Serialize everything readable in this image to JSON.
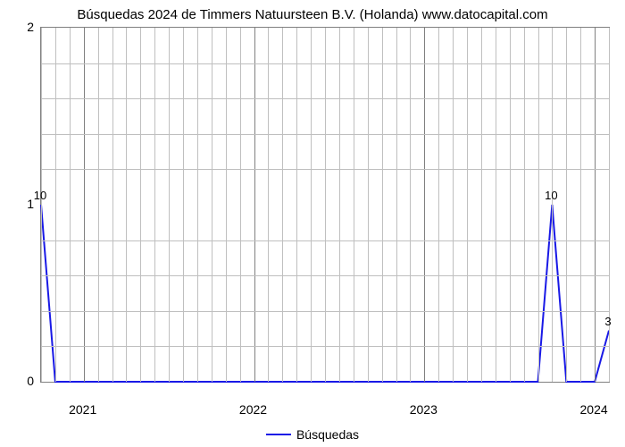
{
  "chart": {
    "type": "line",
    "title": "Búsquedas 2024 de Timmers Natuursteen B.V. (Holanda) www.datocapital.com",
    "title_fontsize": 15,
    "background_color": "#ffffff",
    "plot_border_color": "#808080",
    "line_color": "#1919e6",
    "line_width": 2,
    "grid_major_color": "#808080",
    "grid_minor_color": "#bfbfbf",
    "ylim": [
      0,
      2
    ],
    "ytick_major": [
      0,
      1,
      2
    ],
    "yminor_count_between": 4,
    "xlim": [
      0,
      40
    ],
    "x_major_ticks_pos": [
      3,
      15,
      27,
      39
    ],
    "x_major_labels": [
      "2021",
      "2022",
      "2023",
      "2024"
    ],
    "x_minor_interval": 1,
    "series_x": [
      0,
      1,
      2,
      3,
      4,
      5,
      6,
      7,
      8,
      9,
      10,
      11,
      12,
      13,
      14,
      15,
      16,
      17,
      18,
      19,
      20,
      21,
      22,
      23,
      24,
      25,
      26,
      27,
      28,
      29,
      30,
      31,
      32,
      33,
      34,
      35,
      36,
      37,
      38,
      39,
      40
    ],
    "series_y": [
      1,
      0,
      0,
      0,
      0,
      0,
      0,
      0,
      0,
      0,
      0,
      0,
      0,
      0,
      0,
      0,
      0,
      0,
      0,
      0,
      0,
      0,
      0,
      0,
      0,
      0,
      0,
      0,
      0,
      0,
      0,
      0,
      0,
      0,
      0,
      0,
      1,
      0,
      0,
      0,
      0.29
    ],
    "data_labels": [
      {
        "x": 0,
        "y": 1,
        "text": "10"
      },
      {
        "x": 36,
        "y": 1,
        "text": "10"
      },
      {
        "x": 40,
        "y": 0.29,
        "text": "3"
      }
    ],
    "legend_label": "Búsquedas",
    "label_fontsize": 14
  }
}
